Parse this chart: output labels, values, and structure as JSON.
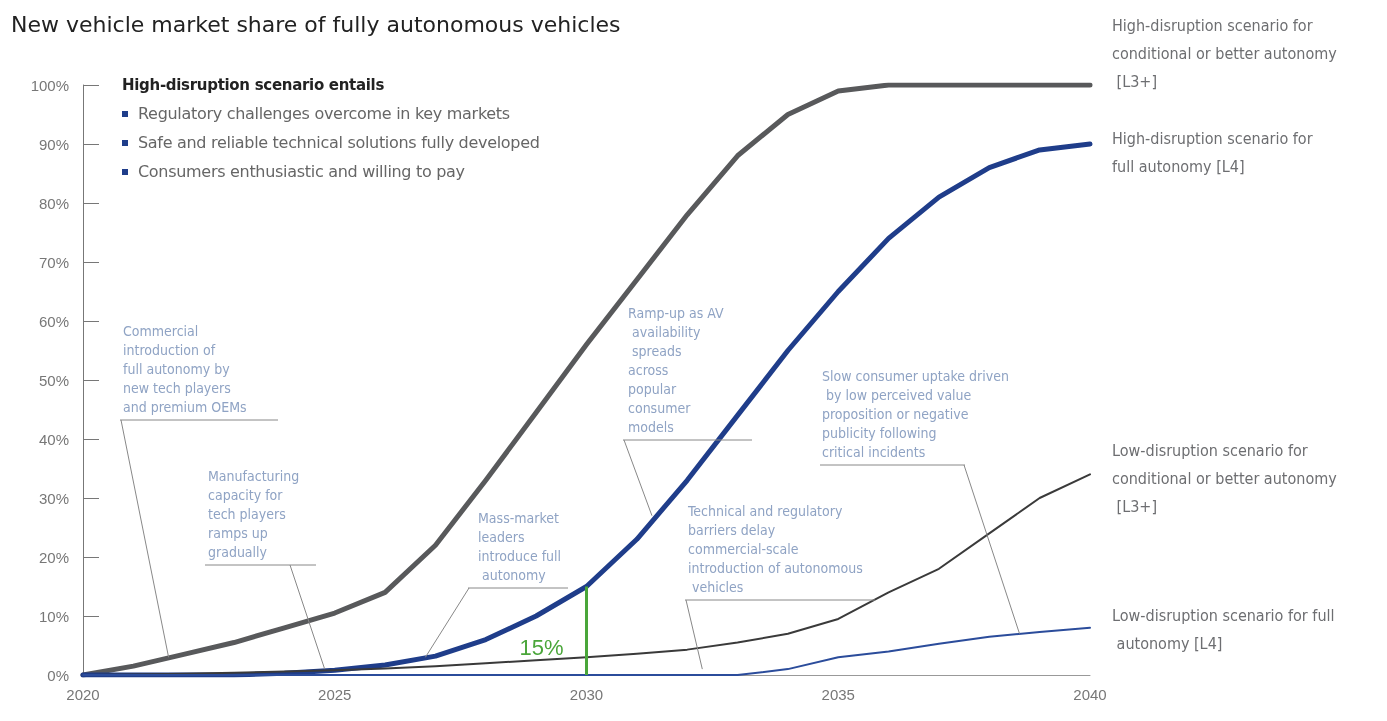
{
  "chart_data": {
    "type": "line",
    "title": "New vehicle market share of fully autonomous vehicles",
    "x": [
      2020,
      2021,
      2022,
      2023,
      2024,
      2025,
      2026,
      2027,
      2028,
      2029,
      2030,
      2031,
      2032,
      2033,
      2034,
      2035,
      2036,
      2037,
      2038,
      2039,
      2040
    ],
    "series": [
      {
        "name": "High-disruption scenario for conditional or better autonomy [L3+]",
        "color": "#58595b",
        "values": [
          0,
          1.5,
          3.5,
          5.5,
          8,
          10.5,
          14,
          22,
          33,
          44.5,
          56,
          67,
          78,
          88,
          95,
          99,
          100,
          100,
          100,
          100,
          100
        ]
      },
      {
        "name": "High-disruption scenario for full autonomy [L4]",
        "color": "#1f3d8a",
        "values": [
          0,
          0,
          0,
          0,
          0.3,
          0.8,
          1.7,
          3.2,
          6,
          10,
          15,
          23,
          33,
          44,
          55,
          65,
          74,
          81,
          86,
          89,
          90
        ]
      },
      {
        "name": "Low-disruption scenario for conditional or better autonomy [L3+]",
        "color": "#3a3a3a",
        "values": [
          0,
          0.1,
          0.2,
          0.4,
          0.6,
          0.8,
          1.1,
          1.5,
          2,
          2.5,
          3,
          3.6,
          4.3,
          5.5,
          7,
          9.5,
          14,
          18,
          24,
          30,
          34
        ]
      },
      {
        "name": "Low-disruption scenario for full autonomy [L4]",
        "color": "#2b4c9b",
        "values": [
          0,
          0,
          0,
          0,
          0,
          0,
          0,
          0,
          0,
          0,
          0,
          0,
          0,
          0,
          1,
          3,
          4,
          5.3,
          6.5,
          7.3,
          8
        ]
      }
    ],
    "xlim": [
      2020,
      2040
    ],
    "xticks": [
      2020,
      2025,
      2030,
      2035,
      2040
    ],
    "ylim": [
      0,
      100
    ],
    "yticks": [
      {
        "value": 0,
        "label": "0%"
      },
      {
        "value": 10,
        "label": "10%"
      },
      {
        "value": 20,
        "label": "20%"
      },
      {
        "value": 30,
        "label": "30%"
      },
      {
        "value": 40,
        "label": "40%"
      },
      {
        "value": 50,
        "label": "50%"
      },
      {
        "value": 60,
        "label": "60%"
      },
      {
        "value": 70,
        "label": "70%"
      },
      {
        "value": 80,
        "label": "80%"
      },
      {
        "value": 90,
        "label": "90%"
      },
      {
        "value": 100,
        "label": "100%"
      }
    ],
    "grid": false,
    "legend": false,
    "marker": "none",
    "line_style": "solid",
    "annotations": [
      "High-disruption scenario entails",
      "Regulatory challenges overcome in key markets",
      "Safe and reliable technical solutions fully developed",
      "Consumers enthusiastic and willing to pay",
      {
        "text": "Commercial introduction of full autonomy by new tech players and premium OEMs",
        "x": 2021.7,
        "y": 3
      },
      {
        "text": "Manufacturing capacity for tech players ramps up gradually",
        "x": 2024.8,
        "y": 1
      },
      {
        "text": "Mass-market leaders introduce full autonomy",
        "x": 2026.8,
        "y": 3
      },
      {
        "text": "Ramp-up as AV availability spreads across popular consumer models",
        "x": 2031.3,
        "y": 27
      },
      {
        "text": "Technical and regulatory barriers delay commercial-scale introduction of autonomous vehicles",
        "x": 2032.3,
        "y": 1
      },
      {
        "text": "Slow consumer uptake driven by low perceived value proposition or negative publicity following critical incidents",
        "x": 2038.6,
        "y": 7
      },
      {
        "text": "15%",
        "x": 2030,
        "y": 15
      }
    ]
  }
}
